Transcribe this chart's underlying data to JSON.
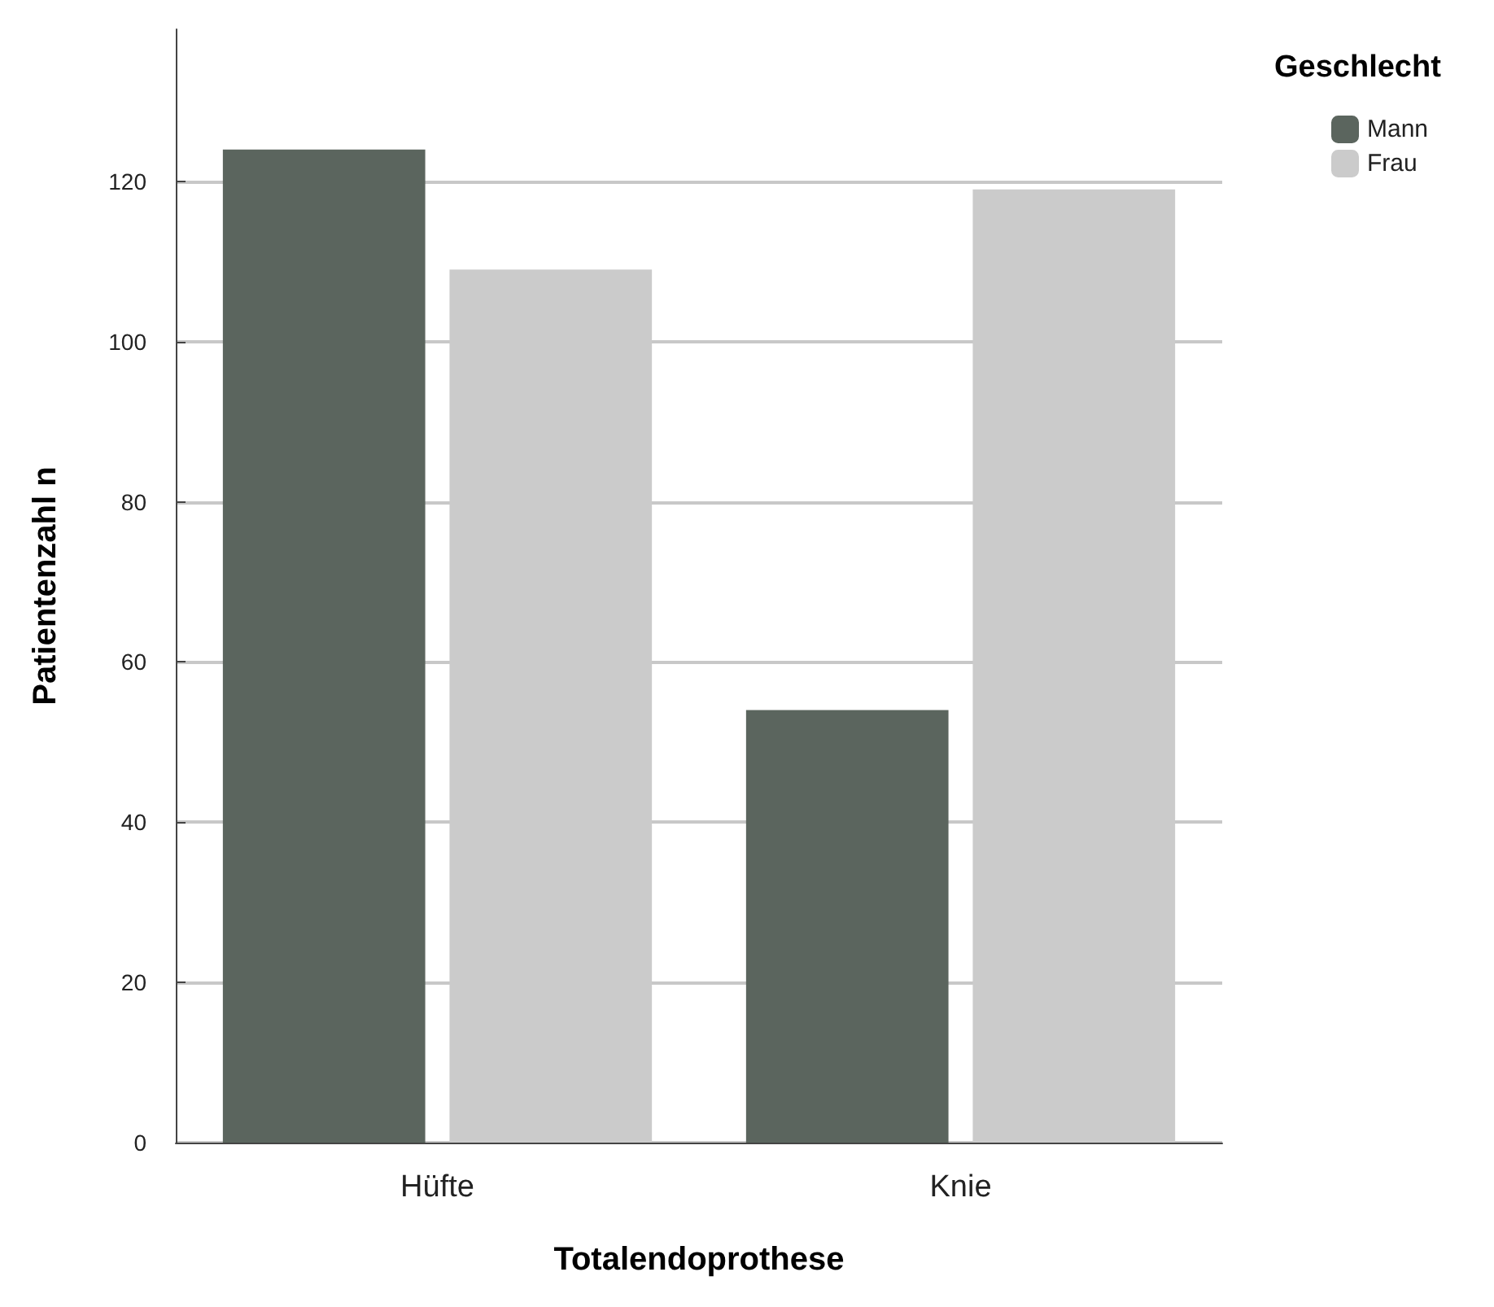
{
  "chart_data": {
    "type": "bar",
    "xlabel": "Totalendoprothese",
    "ylabel": "Patientenzahl n",
    "legend_title": "Geschlecht",
    "categories": [
      "Hüfte",
      "Knie"
    ],
    "series": [
      {
        "name": "Mann",
        "color": "#5b655e",
        "values": [
          124,
          54
        ]
      },
      {
        "name": "Frau",
        "color": "#cbcbcb",
        "values": [
          109,
          119
        ]
      }
    ],
    "ylim": [
      0,
      139
    ],
    "yticks": [
      0,
      20,
      40,
      60,
      80,
      100,
      120
    ],
    "grid": "y",
    "legend": "top right"
  }
}
